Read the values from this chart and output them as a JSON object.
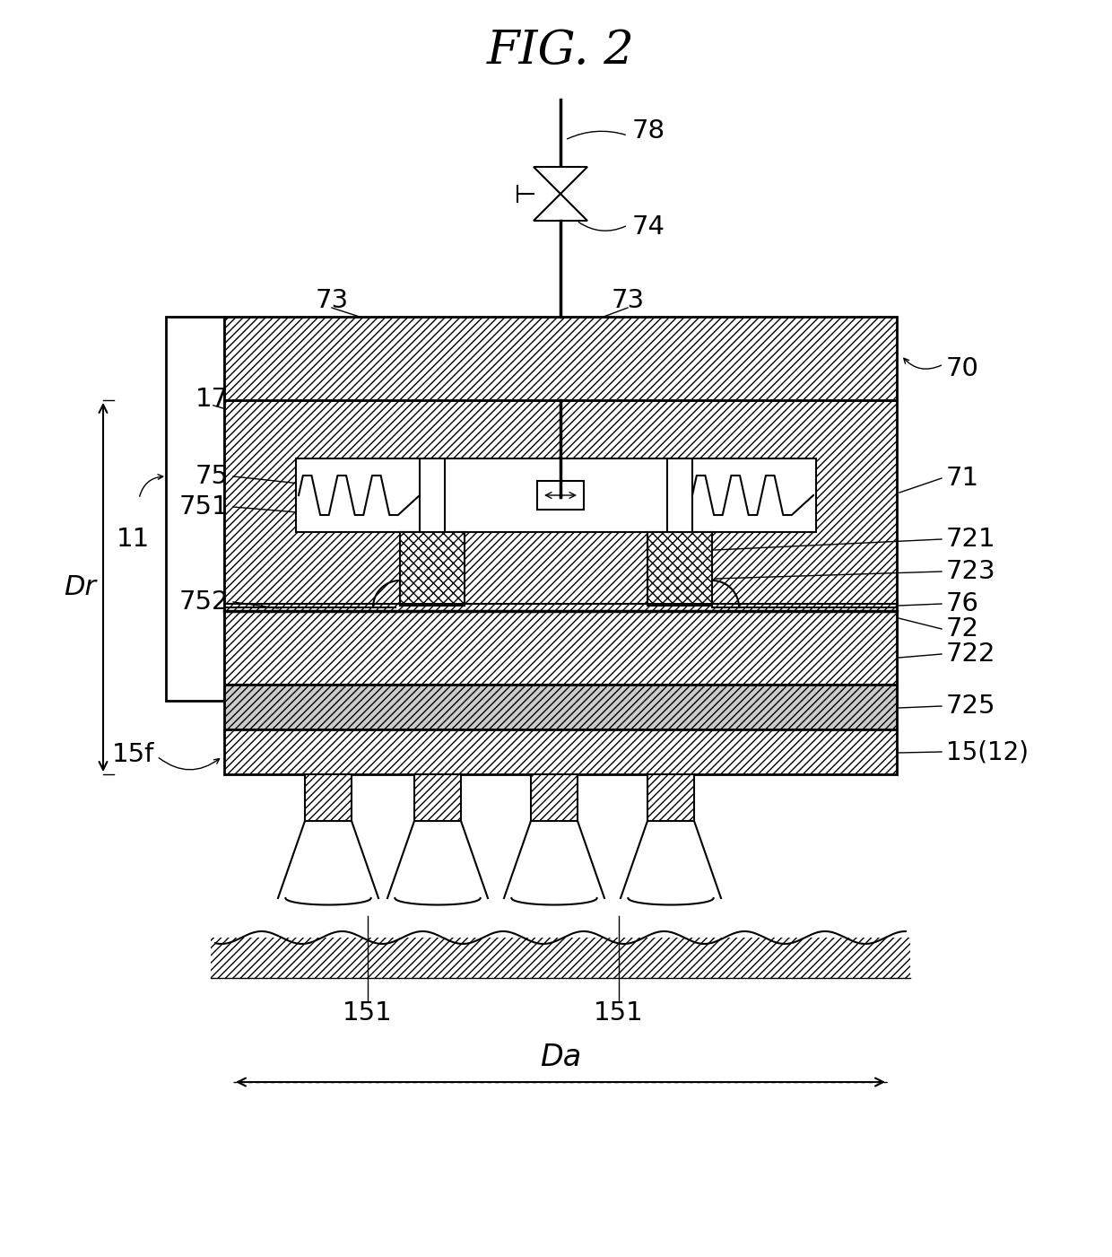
{
  "title": "FIG. 2",
  "bg": "#ffffff",
  "fig_w": 12.4,
  "fig_h": 14.01,
  "labels": {
    "title": "FIG. 2",
    "l78": "78",
    "l74": "74",
    "l73L": "73",
    "l73R": "73",
    "l70": "70",
    "l11": "11",
    "l17": "17",
    "l75": "75",
    "l751": "751",
    "l752": "752",
    "l71": "71",
    "l721": "721",
    "l723": "723",
    "l76": "76",
    "l72": "72",
    "l722": "722",
    "l725": "725",
    "l15f": "15f",
    "l15_12": "15(12)",
    "l151L": "151",
    "l151R": "151",
    "lDr": "Dr",
    "lDa": "Da"
  }
}
